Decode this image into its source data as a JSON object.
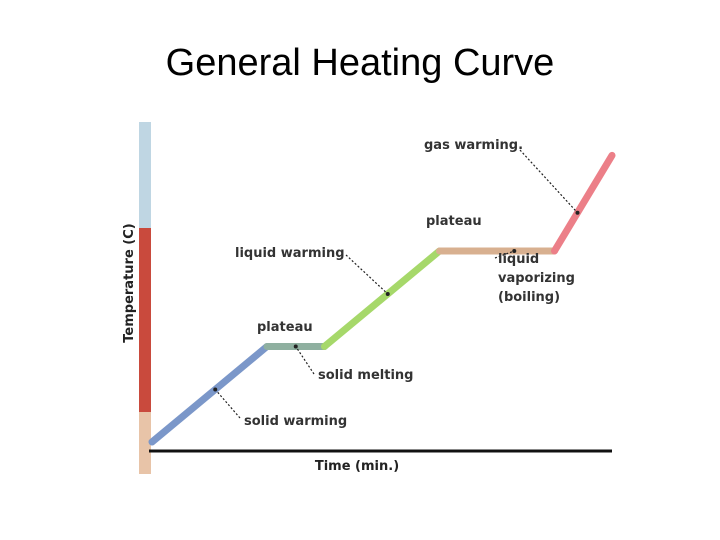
{
  "title": "General Heating Curve",
  "chart_data": {
    "type": "line",
    "xlabel": "Time (min.)",
    "ylabel": "Temperature (C)",
    "grid": false,
    "legend": "none",
    "x": [
      0,
      1,
      1.5,
      2.5,
      3.5,
      4
    ],
    "y": [
      0,
      1,
      1,
      2,
      2,
      3
    ],
    "segments": [
      {
        "phase": "solid",
        "from": 0,
        "to": 1,
        "color": "#7b97c9"
      },
      {
        "phase": "melting",
        "from": 1,
        "to": 1.5,
        "color": "#8fb0a0"
      },
      {
        "phase": "liquid",
        "from": 1.5,
        "to": 2.5,
        "color": "#a6d86a"
      },
      {
        "phase": "vaporizing",
        "from": 2.5,
        "to": 3.5,
        "color": "#d8b090"
      },
      {
        "phase": "gas",
        "from": 3.5,
        "to": 4,
        "color": "#ec7f88"
      }
    ],
    "annotations": [
      {
        "text": "solid warming",
        "at_x": 0.55
      },
      {
        "text": "plateau",
        "at_x": 1.0
      },
      {
        "text": "solid melting",
        "at_x": 1.25
      },
      {
        "text": "liquid warming",
        "at_x": 2.05
      },
      {
        "text": "plateau",
        "at_x": 3.0
      },
      {
        "text": "liquid",
        "at_x": 3.15
      },
      {
        "text": "vaporizing",
        "at_x": 3.15
      },
      {
        "text": "(boiling)",
        "at_x": 3.15
      },
      {
        "text": "gas warming.",
        "at_x": 3.7
      }
    ],
    "thermometer_colors": {
      "cold": "#bfd6e3",
      "hot": "#c94a3d"
    }
  }
}
